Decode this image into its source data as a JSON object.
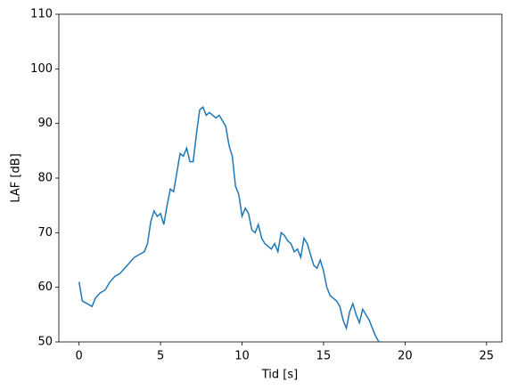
{
  "chart_data": {
    "type": "line",
    "x_label": "Tid [s]",
    "y_label": "LAF [dB]",
    "x": [
      0,
      0.2,
      0.5,
      0.8,
      1,
      1.3,
      1.6,
      1.9,
      2.2,
      2.5,
      2.8,
      3.1,
      3.4,
      3.7,
      4,
      4.2,
      4.4,
      4.6,
      4.8,
      5,
      5.2,
      5.4,
      5.6,
      5.8,
      6,
      6.2,
      6.4,
      6.6,
      6.8,
      7,
      7.2,
      7.4,
      7.6,
      7.8,
      8,
      8.2,
      8.4,
      8.6,
      8.8,
      9,
      9.2,
      9.4,
      9.6,
      9.8,
      10,
      10.2,
      10.4,
      10.6,
      10.8,
      11,
      11.2,
      11.4,
      11.6,
      11.8,
      12,
      12.2,
      12.4,
      12.6,
      12.8,
      13,
      13.2,
      13.4,
      13.6,
      13.8,
      14,
      14.2,
      14.4,
      14.6,
      14.8,
      15,
      15.2,
      15.4,
      15.6,
      15.8,
      16,
      16.2,
      16.4,
      16.6,
      16.8,
      17,
      17.2,
      17.4,
      17.6,
      17.8,
      18,
      18.2,
      18.4,
      18.6
    ],
    "series": [
      {
        "color": "#1f77b4",
        "values": [
          61,
          57.5,
          57,
          56.5,
          58,
          59,
          59.5,
          61,
          62,
          62.5,
          63.5,
          64.5,
          65.5,
          66,
          66.5,
          68,
          72,
          74,
          73,
          73.5,
          71.5,
          75,
          78,
          77.5,
          81,
          84.5,
          84,
          85.5,
          83,
          83,
          88,
          92.5,
          93,
          91.5,
          92,
          91.5,
          91,
          91.5,
          90.5,
          89.5,
          86,
          84,
          78.5,
          77,
          73,
          74.5,
          73.5,
          70.5,
          70,
          71.5,
          69,
          68,
          67.5,
          67,
          68,
          66.5,
          70,
          69.5,
          68.5,
          68,
          66.5,
          67,
          65.5,
          69,
          68,
          66,
          64,
          63.5,
          65,
          63,
          60,
          58.5,
          58,
          57.5,
          56.5,
          54,
          52.5,
          55.5,
          57,
          55,
          53.5,
          56,
          55,
          54,
          52.5,
          51,
          50,
          50
        ]
      }
    ],
    "xlim": [
      -1.24,
      25.94
    ],
    "xticks": [
      0,
      5,
      10,
      15,
      20,
      25
    ],
    "ylim": [
      50,
      110
    ],
    "yticks": [
      50,
      60,
      70,
      80,
      90,
      100,
      110
    ]
  }
}
